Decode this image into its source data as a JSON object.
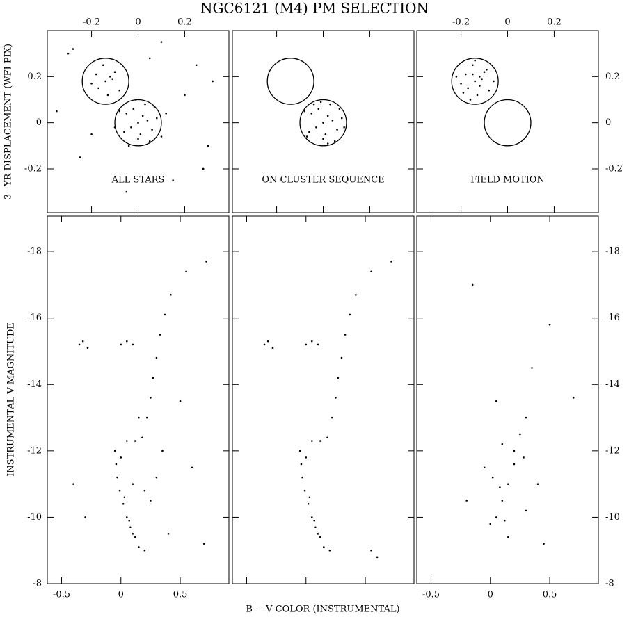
{
  "chart_data": [
    {
      "type": "scatter",
      "title": "NGC6121 (M4) PM SELECTION",
      "ylabel": "3−YR DISPLACEMENT (WFI PIX)",
      "label": "ALL STARS",
      "xlim": [
        -0.39,
        0.39
      ],
      "ylim": [
        -0.39,
        0.4
      ],
      "xticks": [
        -0.2,
        0,
        0.2
      ],
      "yticks": [
        -0.2,
        0,
        0.2
      ],
      "circles": [
        {
          "x": 0,
          "y": 0,
          "r": 0.1
        },
        {
          "x": -0.14,
          "y": 0.18,
          "r": 0.1
        }
      ],
      "x": [
        0,
        0.02,
        -0.03,
        0.04,
        -0.05,
        0.01,
        0.06,
        -0.02,
        0.03,
        -0.06,
        0.08,
        -0.08,
        0.05,
        0.0,
        -0.01,
        0.07,
        0.1,
        -0.1,
        0.12,
        -0.04,
        -0.14,
        -0.12,
        -0.17,
        -0.1,
        -0.2,
        -0.15,
        -0.08,
        -0.13,
        -0.18,
        -0.11,
        -0.3,
        0.25,
        0.3,
        -0.25,
        0.15,
        -0.05,
        0.2,
        -0.35,
        0.32,
        0.1,
        -0.2,
        0.28,
        -0.28,
        0.05
      ],
      "y": [
        0,
        0.03,
        -0.02,
        0.01,
        0.04,
        -0.05,
        -0.03,
        0.06,
        0.08,
        -0.04,
        0.02,
        0.05,
        -0.08,
        -0.07,
        0.1,
        0.07,
        -0.06,
        -0.02,
        0.04,
        -0.1,
        0.18,
        0.2,
        0.15,
        0.22,
        0.17,
        0.25,
        0.14,
        0.12,
        0.21,
        0.19,
        0.3,
        0.25,
        -0.1,
        -0.15,
        -0.25,
        -0.3,
        0.12,
        0.05,
        0.18,
        0.35,
        -0.05,
        -0.2,
        0.32,
        0.28
      ]
    },
    {
      "type": "scatter",
      "label": "ON CLUSTER SEQUENCE",
      "xlim": [
        -0.39,
        0.39
      ],
      "ylim": [
        -0.39,
        0.4
      ],
      "xticks": [
        -0.2,
        0,
        0.2
      ],
      "yticks": [
        -0.2,
        0,
        0.2
      ],
      "circles": [
        {
          "x": -0.14,
          "y": 0.18,
          "r": 0.1
        },
        {
          "x": 0,
          "y": 0,
          "r": 0.1
        }
      ],
      "x": [
        0,
        0.02,
        -0.03,
        0.04,
        -0.05,
        0.01,
        0.06,
        -0.02,
        0.03,
        -0.06,
        0.08,
        -0.08,
        0.05,
        0.0,
        -0.01,
        0.07,
        -0.07,
        0.09,
        -0.04,
        0.02
      ],
      "y": [
        0,
        0.03,
        -0.02,
        0.01,
        0.04,
        -0.05,
        -0.03,
        0.06,
        0.08,
        -0.04,
        0.02,
        0.05,
        -0.08,
        -0.07,
        0.09,
        0.06,
        -0.06,
        -0.02,
        0.08,
        -0.09
      ]
    },
    {
      "type": "scatter",
      "label": "FIELD MOTION",
      "xlim": [
        -0.39,
        0.39
      ],
      "ylim": [
        -0.39,
        0.4
      ],
      "xticks": [
        -0.2,
        0,
        0.2
      ],
      "yticks": [
        -0.2,
        0,
        0.2
      ],
      "circles": [
        {
          "x": -0.14,
          "y": 0.18,
          "r": 0.1
        },
        {
          "x": 0,
          "y": 0,
          "r": 0.1
        }
      ],
      "x": [
        -0.14,
        -0.12,
        -0.17,
        -0.1,
        -0.2,
        -0.15,
        -0.08,
        -0.13,
        -0.18,
        -0.11,
        -0.16,
        -0.06,
        -0.22,
        -0.14,
        -0.09,
        -0.19,
        -0.12,
        -0.15
      ],
      "y": [
        0.18,
        0.2,
        0.15,
        0.22,
        0.17,
        0.25,
        0.14,
        0.12,
        0.21,
        0.19,
        0.1,
        0.18,
        0.2,
        0.27,
        0.23,
        0.13,
        0.16,
        0.21
      ]
    },
    {
      "type": "scatter",
      "ylabel": "INSTRUMENTAL V MAGNITUDE",
      "xlim": [
        -0.62,
        0.91
      ],
      "ylim": [
        -8,
        -19.07
      ],
      "xticks": [
        -0.5,
        0,
        0.5
      ],
      "yticks": [
        -8,
        -10,
        -12,
        -14,
        -16,
        -18
      ],
      "x": [
        -0.05,
        -0.04,
        -0.03,
        -0.01,
        0.02,
        0.05,
        0.08,
        0.12,
        0.15,
        0.0,
        0.03,
        0.07,
        0.1,
        0.2,
        0.05,
        0.12,
        0.18,
        0.22,
        0.25,
        0.27,
        0.3,
        0.33,
        0.37,
        0.42,
        0.55,
        0.72,
        -0.35,
        -0.32,
        -0.28,
        0.0,
        0.05,
        0.1,
        0.1,
        0.25,
        0.35,
        0.4,
        -0.3,
        0.6,
        0.5,
        0.3,
        0.2,
        0.7,
        -0.4,
        0.15
      ],
      "y": [
        -12.0,
        -11.6,
        -11.2,
        -10.8,
        -10.4,
        -10.0,
        -9.7,
        -9.4,
        -9.1,
        -11.8,
        -10.6,
        -9.9,
        -9.5,
        -9.0,
        -12.3,
        -12.3,
        -12.4,
        -13.0,
        -13.6,
        -14.2,
        -14.8,
        -15.5,
        -16.1,
        -16.7,
        -17.4,
        -17.7,
        -15.2,
        -15.3,
        -15.1,
        -15.2,
        -15.3,
        -15.2,
        -11.0,
        -10.5,
        -12.0,
        -9.5,
        -10.0,
        -11.5,
        -13.5,
        -11.2,
        -10.8,
        -9.2,
        -11.0,
        -13.0
      ]
    },
    {
      "type": "scatter",
      "xlabel": "B − V COLOR (INSTRUMENTAL)",
      "xlim": [
        -0.62,
        0.91
      ],
      "ylim": [
        -8,
        -19.07
      ],
      "xticks": [
        -0.5,
        0,
        0.5
      ],
      "yticks": [
        -8,
        -10,
        -12,
        -14,
        -16,
        -18
      ],
      "x": [
        -0.05,
        -0.04,
        -0.03,
        -0.01,
        0.02,
        0.05,
        0.08,
        0.12,
        0.15,
        0.0,
        0.03,
        0.07,
        0.1,
        0.2,
        0.05,
        0.12,
        0.18,
        0.22,
        0.25,
        0.27,
        0.3,
        0.33,
        0.37,
        0.42,
        0.55,
        0.72,
        -0.35,
        -0.32,
        -0.28,
        0.0,
        0.05,
        0.1,
        0.55,
        0.6
      ],
      "y": [
        -12.0,
        -11.6,
        -11.2,
        -10.8,
        -10.4,
        -10.0,
        -9.7,
        -9.4,
        -9.1,
        -11.8,
        -10.6,
        -9.9,
        -9.5,
        -9.0,
        -12.3,
        -12.3,
        -12.4,
        -13.0,
        -13.6,
        -14.2,
        -14.8,
        -15.5,
        -16.1,
        -16.7,
        -17.4,
        -17.7,
        -15.2,
        -15.3,
        -15.1,
        -15.2,
        -15.3,
        -15.2,
        -9.0,
        -8.8
      ]
    },
    {
      "type": "scatter",
      "xlim": [
        -0.62,
        0.91
      ],
      "ylim": [
        -8,
        -19.07
      ],
      "xticks": [
        -0.5,
        0,
        0.5
      ],
      "yticks": [
        -8,
        -10,
        -12,
        -14,
        -16,
        -18
      ],
      "x": [
        0.05,
        0.1,
        0.15,
        0.0,
        0.2,
        0.25,
        0.3,
        0.35,
        -0.05,
        0.1,
        0.05,
        0.4,
        0.3,
        0.15,
        -0.2,
        0.5,
        0.7,
        -0.15,
        0.45,
        0.2,
        0.08,
        0.12,
        0.02,
        0.28
      ],
      "y": [
        -10.0,
        -10.5,
        -11.0,
        -9.8,
        -12.0,
        -12.5,
        -13.0,
        -14.5,
        -11.5,
        -12.2,
        -13.5,
        -11.0,
        -10.2,
        -9.4,
        -10.5,
        -15.8,
        -13.6,
        -17.0,
        -9.2,
        -11.6,
        -10.9,
        -9.9,
        -11.2,
        -11.8
      ]
    }
  ]
}
